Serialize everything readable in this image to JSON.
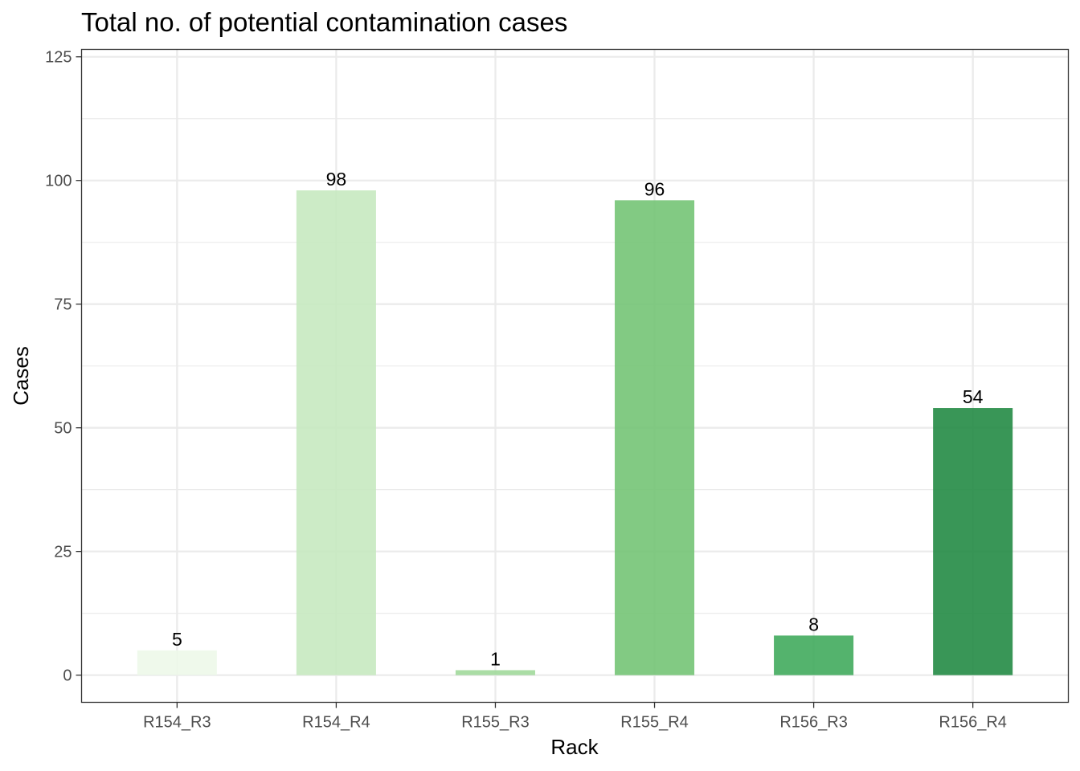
{
  "chart_data": {
    "type": "bar",
    "title": "Total no. of potential contamination cases",
    "xlabel": "Rack",
    "ylabel": "Cases",
    "categories": [
      "R154_R3",
      "R154_R4",
      "R155_R3",
      "R155_R4",
      "R156_R3",
      "R156_R4"
    ],
    "values": [
      5,
      98,
      1,
      96,
      8,
      54
    ],
    "data_labels": [
      "5",
      "98",
      "1",
      "96",
      "8",
      "54"
    ],
    "colors": [
      "#edf8e9",
      "#c7e9c0",
      "#a1d99b",
      "#74c476",
      "#41ab5d",
      "#238b45"
    ],
    "bar_opacity": 0.9,
    "ylim": [
      -5.5,
      126.5
    ],
    "yticks": [
      0,
      25,
      50,
      75,
      100,
      125
    ],
    "ytick_labels": [
      "0",
      "25",
      "50",
      "75",
      "100",
      "125"
    ],
    "grid": true,
    "legend": "none"
  }
}
